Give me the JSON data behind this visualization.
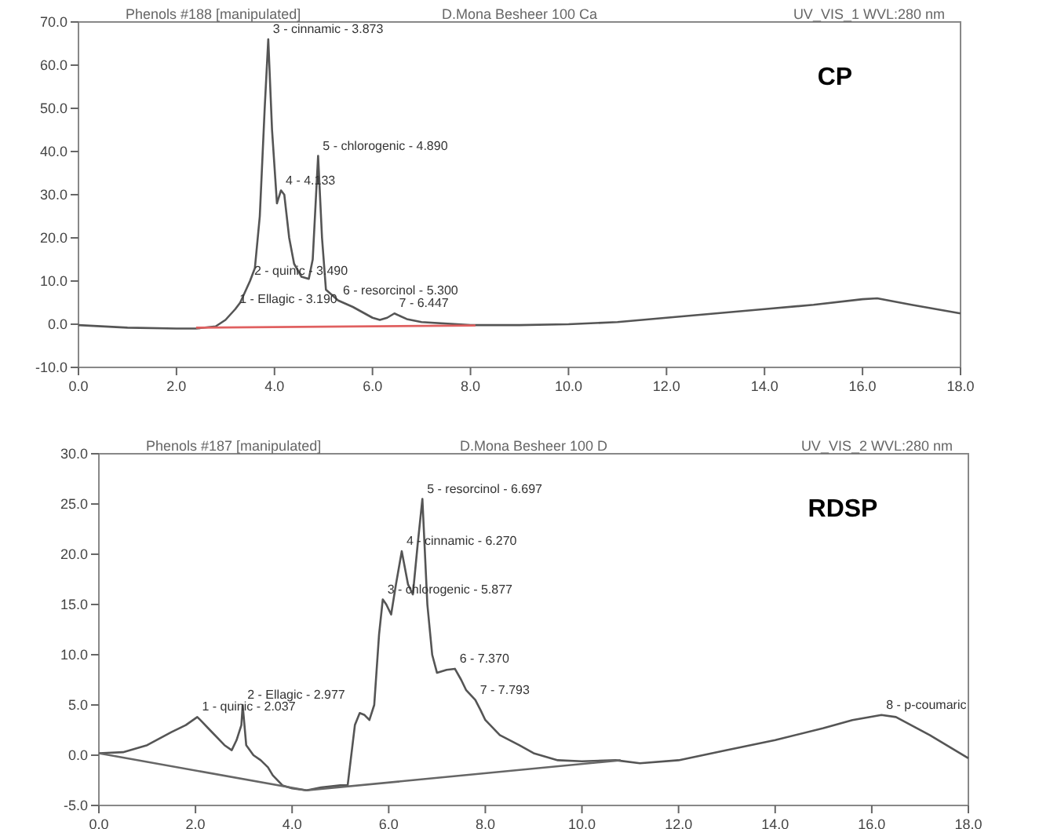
{
  "chart_data": [
    {
      "type": "line",
      "title": "CP",
      "annotations": [
        "Phenols #188 [manipulated]",
        "D.Mona Besheer 100 Ca",
        "UV_VIS_1 WVL:280 nm",
        {
          "text": "3 - cinnamic - 3.873",
          "x": 3.873,
          "y": 66
        },
        {
          "text": "5 - chlorogenic - 4.890",
          "x": 4.89,
          "y": 39
        },
        {
          "text": "4 - 4.133",
          "x": 4.133,
          "y": 31
        },
        {
          "text": "2 - quinic - 3.490",
          "x": 3.49,
          "y": 10
        },
        {
          "text": "1 - Ellagic - 3.190",
          "x": 3.19,
          "y": 3.5
        },
        {
          "text": "6 - resorcinol - 5.300",
          "x": 5.3,
          "y": 5.5
        },
        {
          "text": "7 - 6.447",
          "x": 6.447,
          "y": 2.5
        }
      ],
      "xlim": [
        0,
        18
      ],
      "xticks": [
        {
          "value": 0,
          "label": "0.0"
        },
        {
          "value": 2,
          "label": "2.0"
        },
        {
          "value": 4,
          "label": "4.0"
        },
        {
          "value": 6,
          "label": "6.0"
        },
        {
          "value": 8,
          "label": "8.0"
        },
        {
          "value": 10,
          "label": "10.0"
        },
        {
          "value": 12,
          "label": "12.0"
        },
        {
          "value": 14,
          "label": "14.0"
        },
        {
          "value": 16,
          "label": "16.0"
        },
        {
          "value": 18,
          "label": "18.0"
        }
      ],
      "ylim": [
        -10,
        70
      ],
      "yticks": [
        {
          "value": -10,
          "label": "-10.0"
        },
        {
          "value": 0,
          "label": "0.0"
        },
        {
          "value": 10,
          "label": "10.0"
        },
        {
          "value": 20,
          "label": "20.0"
        },
        {
          "value": 30,
          "label": "30.0"
        },
        {
          "value": 40,
          "label": "40.0"
        },
        {
          "value": 50,
          "label": "50.0"
        },
        {
          "value": 60,
          "label": "60.0"
        },
        {
          "value": 70,
          "label": "70.0"
        }
      ],
      "grid": false,
      "marker": "none",
      "line_style": "solid",
      "series": [
        {
          "color": "#555555",
          "x": [
            0,
            1,
            2,
            2.4,
            2.8,
            3.0,
            3.2,
            3.3,
            3.5,
            3.6,
            3.7,
            3.8,
            3.873,
            3.95,
            4.05,
            4.133,
            4.2,
            4.3,
            4.4,
            4.55,
            4.7,
            4.78,
            4.89,
            4.97,
            5.05,
            5.3,
            5.6,
            6.0,
            6.15,
            6.3,
            6.447,
            6.7,
            7.0,
            8,
            9,
            10,
            11,
            12,
            13,
            14,
            15,
            16,
            16.3,
            17,
            18
          ],
          "values": [
            -0.2,
            -0.8,
            -1,
            -1,
            -0.5,
            1,
            3.5,
            5,
            10,
            13,
            25,
            50,
            66,
            45,
            28,
            31,
            30,
            20,
            14,
            11,
            10.5,
            15,
            39,
            20,
            8,
            5.5,
            4,
            1.5,
            1,
            1.5,
            2.5,
            1.2,
            0.5,
            -0.2,
            -0.2,
            0,
            0.5,
            1.5,
            2.5,
            3.5,
            4.5,
            5.8,
            6,
            4.5,
            2.5
          ]
        },
        {
          "color": "#e06060",
          "x": [
            2.4,
            8.1
          ],
          "values": [
            -0.8,
            -0.3
          ]
        }
      ]
    },
    {
      "type": "line",
      "title": "RDSP",
      "annotations": [
        "Phenols #187 [manipulated]",
        "D.Mona Besheer 100 D",
        "UV_VIS_2 WVL:280 nm",
        {
          "text": "1 - quinic - 2.037",
          "x": 2.037,
          "y": 3.8
        },
        {
          "text": "2 - Ellagic - 2.977",
          "x": 2.977,
          "y": 5
        },
        {
          "text": "3 - chlorogenic - 5.877",
          "x": 5.877,
          "y": 15.5
        },
        {
          "text": "4 - cinnamic - 6.270",
          "x": 6.27,
          "y": 20.3
        },
        {
          "text": "5 - resorcinol - 6.697",
          "x": 6.697,
          "y": 25.5
        },
        {
          "text": "6 - 7.370",
          "x": 7.37,
          "y": 8.6
        },
        {
          "text": "7 - 7.793",
          "x": 7.793,
          "y": 5.5
        },
        {
          "text": "8 - p-coumaric",
          "x": 16.2,
          "y": 4
        }
      ],
      "xlim": [
        0,
        18
      ],
      "xticks": [
        {
          "value": 0,
          "label": "0.0"
        },
        {
          "value": 2,
          "label": "2.0"
        },
        {
          "value": 4,
          "label": "4.0"
        },
        {
          "value": 6,
          "label": "6.0"
        },
        {
          "value": 8,
          "label": "8.0"
        },
        {
          "value": 10,
          "label": "10.0"
        },
        {
          "value": 12,
          "label": "12.0"
        },
        {
          "value": 14,
          "label": "14.0"
        },
        {
          "value": 16,
          "label": "16.0"
        },
        {
          "value": 18,
          "label": "18.0"
        }
      ],
      "ylim": [
        -5,
        30
      ],
      "yticks": [
        {
          "value": -5,
          "label": "-5.0"
        },
        {
          "value": 0,
          "label": "0.0"
        },
        {
          "value": 5,
          "label": "5.0"
        },
        {
          "value": 10,
          "label": "10.0"
        },
        {
          "value": 15,
          "label": "15.0"
        },
        {
          "value": 20,
          "label": "20.0"
        },
        {
          "value": 25,
          "label": "25.0"
        },
        {
          "value": 30,
          "label": "30.0"
        }
      ],
      "grid": false,
      "marker": "none",
      "line_style": "solid",
      "series": [
        {
          "color": "#555555",
          "x": [
            0,
            0.5,
            1.0,
            1.5,
            1.8,
            2.037,
            2.1,
            2.3,
            2.6,
            2.75,
            2.85,
            2.95,
            2.977,
            3.05,
            3.2,
            3.35,
            3.5,
            3.6,
            3.8,
            4.0,
            4.3,
            4.6,
            5.0,
            5.15,
            5.3,
            5.4,
            5.5,
            5.6,
            5.7,
            5.8,
            5.877,
            5.95,
            6.05,
            6.15,
            6.27,
            6.4,
            6.5,
            6.6,
            6.697,
            6.8,
            6.9,
            7.0,
            7.2,
            7.37,
            7.5,
            7.6,
            7.793,
            7.9,
            8.0,
            8.3,
            8.7,
            9.0,
            9.5,
            10,
            10.7,
            11.2,
            12,
            13,
            14,
            15,
            15.6,
            16.2,
            16.5,
            17.2,
            18
          ],
          "values": [
            0.2,
            0.3,
            1,
            2.3,
            3,
            3.8,
            3.5,
            2.5,
            1,
            0.5,
            1.5,
            3,
            5,
            1,
            0,
            -0.5,
            -1.2,
            -2,
            -3,
            -3.3,
            -3.5,
            -3.2,
            -3,
            -3,
            3,
            4.2,
            4,
            3.5,
            5,
            12,
            15.5,
            15,
            14,
            17,
            20.3,
            17,
            16,
            21,
            25.5,
            15,
            10,
            8.2,
            8.5,
            8.6,
            7.5,
            6.5,
            5.5,
            4.5,
            3.5,
            2,
            1,
            0.2,
            -0.5,
            -0.6,
            -0.5,
            -0.8,
            -0.5,
            0.5,
            1.5,
            2.7,
            3.5,
            4,
            3.8,
            2,
            -0.3
          ]
        },
        {
          "color": "#666666",
          "x": [
            0,
            4.3,
            10.8
          ],
          "values": [
            0.2,
            -3.5,
            -0.5
          ]
        }
      ]
    }
  ]
}
